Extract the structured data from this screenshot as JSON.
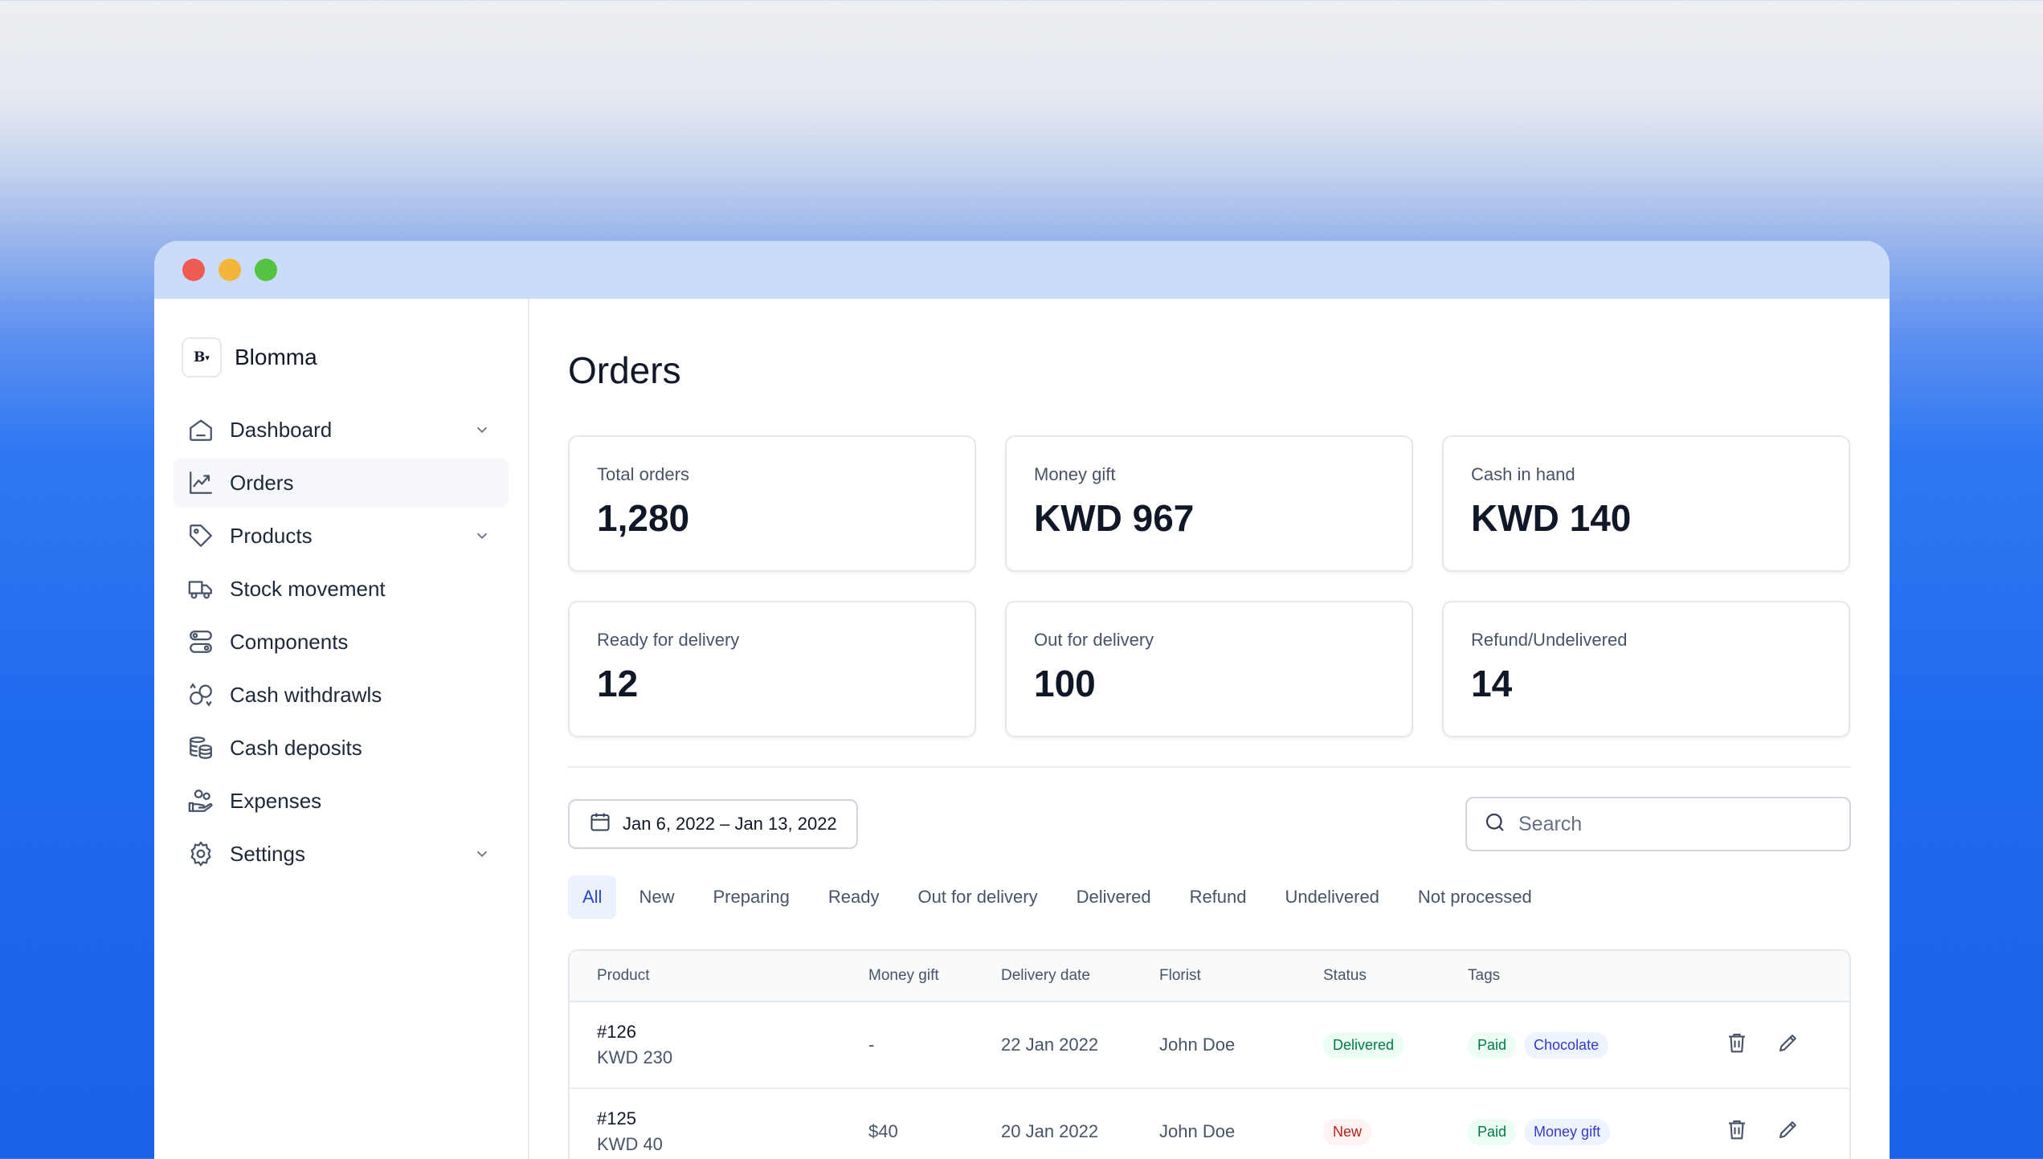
{
  "window": {
    "traffic_lights": {
      "close": "#ee5b52",
      "minimize": "#f3b63b",
      "maximize": "#55c242"
    }
  },
  "brand": {
    "logo_text": "B",
    "name": "Blomma"
  },
  "sidebar": {
    "items": [
      {
        "label": "Dashboard",
        "icon": "home-icon",
        "has_chevron": true,
        "active": false
      },
      {
        "label": "Orders",
        "icon": "trend-chart-icon",
        "has_chevron": false,
        "active": true
      },
      {
        "label": "Products",
        "icon": "tag-icon",
        "has_chevron": true,
        "active": false
      },
      {
        "label": "Stock movement",
        "icon": "truck-icon",
        "has_chevron": false,
        "active": false
      },
      {
        "label": "Components",
        "icon": "components-icon",
        "has_chevron": false,
        "active": false
      },
      {
        "label": "Cash withdrawls",
        "icon": "coins-swap-icon",
        "has_chevron": false,
        "active": false
      },
      {
        "label": "Cash deposits",
        "icon": "coins-stack-icon",
        "has_chevron": false,
        "active": false
      },
      {
        "label": "Expenses",
        "icon": "hand-coins-icon",
        "has_chevron": false,
        "active": false
      },
      {
        "label": "Settings",
        "icon": "gear-icon",
        "has_chevron": true,
        "active": false
      }
    ]
  },
  "main": {
    "title": "Orders",
    "stats": [
      {
        "label": "Total orders",
        "value": "1,280"
      },
      {
        "label": "Money gift",
        "value": "KWD 967"
      },
      {
        "label": "Cash in hand",
        "value": "KWD 140"
      },
      {
        "label": "Ready for delivery",
        "value": "12"
      },
      {
        "label": "Out for delivery",
        "value": "100"
      },
      {
        "label": "Refund/Undelivered",
        "value": "14"
      }
    ],
    "date_range": "Jan 6, 2022 – Jan 13, 2022",
    "search": {
      "placeholder": "Search",
      "value": ""
    },
    "tabs": [
      {
        "label": "All",
        "active": true
      },
      {
        "label": "New",
        "active": false
      },
      {
        "label": "Preparing",
        "active": false
      },
      {
        "label": "Ready",
        "active": false
      },
      {
        "label": "Out for delivery",
        "active": false
      },
      {
        "label": "Delivered",
        "active": false
      },
      {
        "label": "Refund",
        "active": false
      },
      {
        "label": "Undelivered",
        "active": false
      },
      {
        "label": "Not processed",
        "active": false
      }
    ],
    "table": {
      "columns": [
        "Product",
        "Money gift",
        "Delivery date",
        "Florist",
        "Status",
        "Tags"
      ],
      "rows": [
        {
          "id": "#126",
          "price": "KWD 230",
          "money_gift": "-",
          "delivery_date": "22 Jan 2022",
          "florist": "John Doe",
          "status": "Delivered",
          "status_color": "green",
          "tags": [
            {
              "label": "Paid",
              "color": "green"
            },
            {
              "label": "Chocolate",
              "color": "blue"
            }
          ]
        },
        {
          "id": "#125",
          "price": "KWD 40",
          "money_gift": "$40",
          "delivery_date": "20 Jan 2022",
          "florist": "John Doe",
          "status": "New",
          "status_color": "red",
          "tags": [
            {
              "label": "Paid",
              "color": "green"
            },
            {
              "label": "Money gift",
              "color": "blue"
            }
          ]
        }
      ]
    }
  }
}
